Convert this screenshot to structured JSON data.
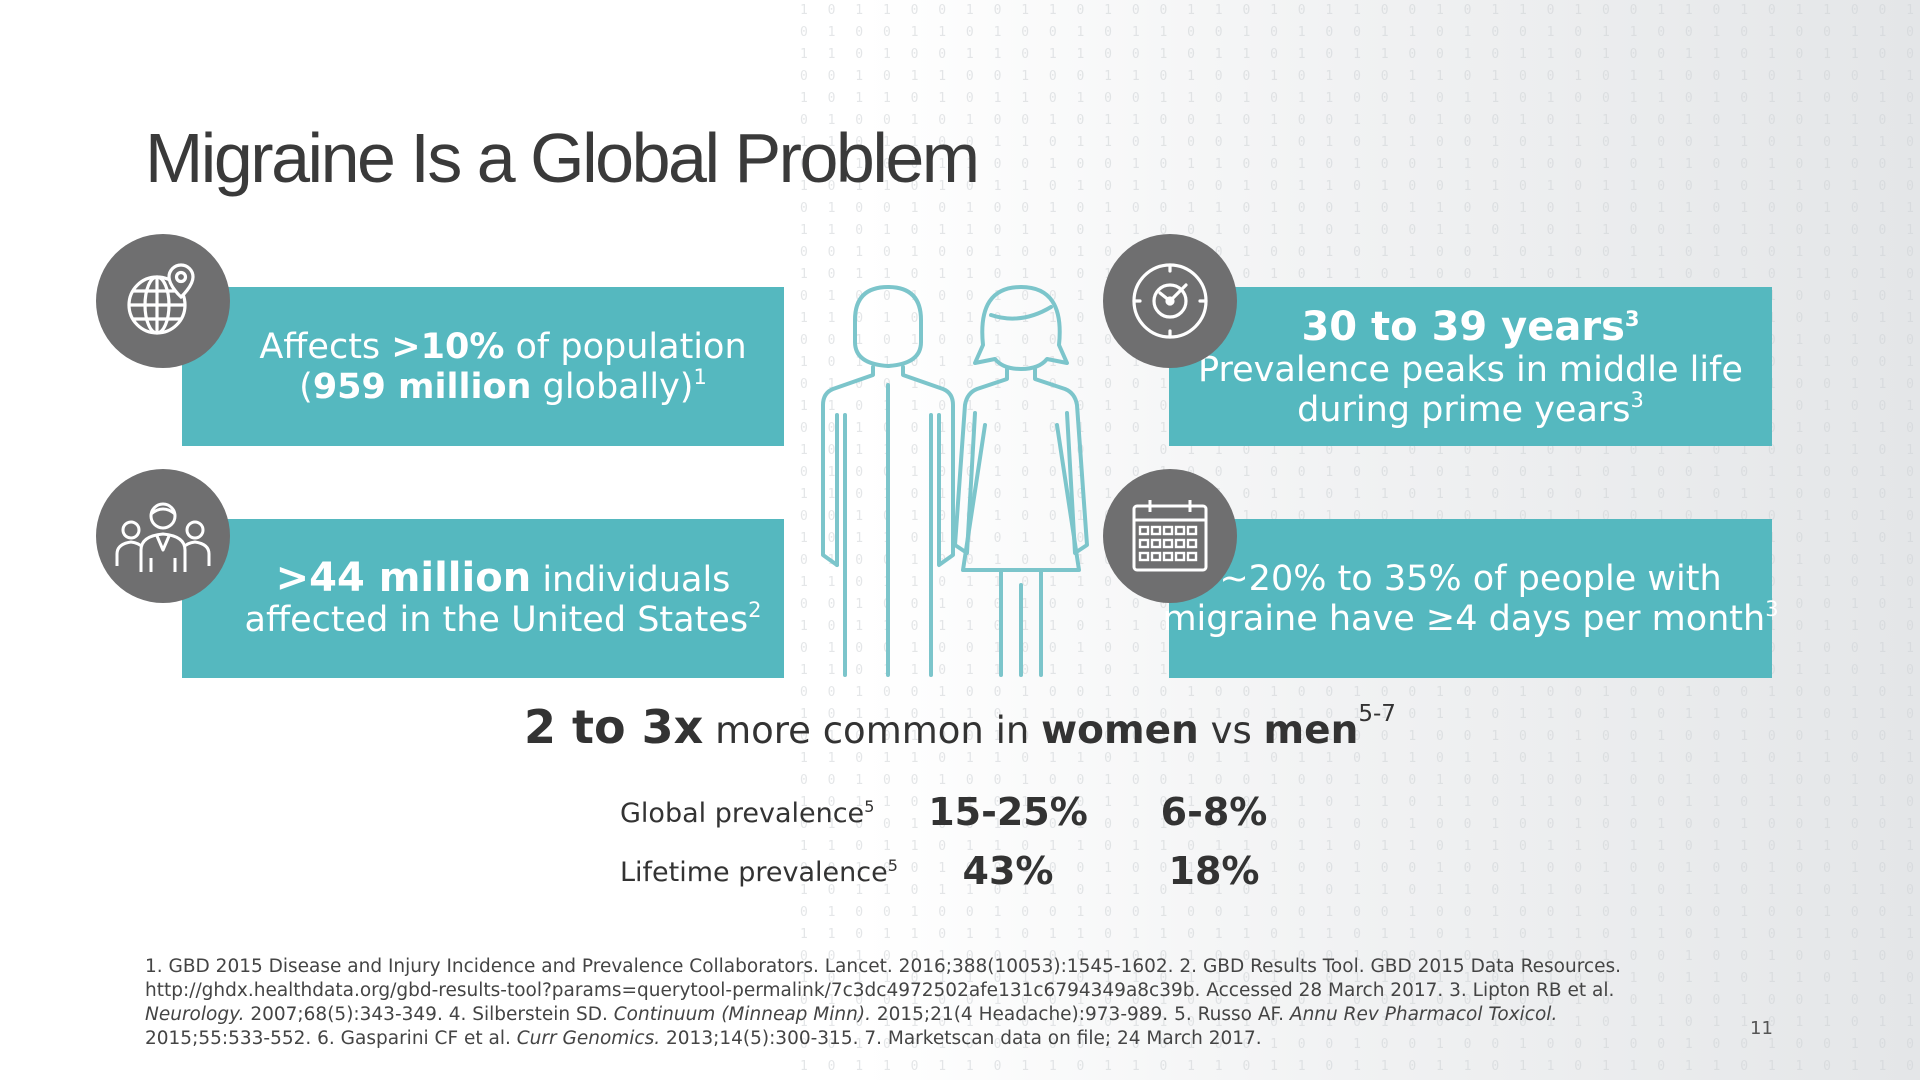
{
  "slide": {
    "title": "Migraine Is a Global Problem",
    "page_number": "11"
  },
  "stats": {
    "global": {
      "line1_pre": "Affects ",
      "line1_bold": ">10%",
      "line1_post": " of population",
      "line2_pre": "(",
      "line2_bold": "959 million",
      "line2_post": " globally)",
      "sup": "1",
      "icon": "globe-pin-icon"
    },
    "us": {
      "line1_bold": ">44 million",
      "line1_post": " individuals",
      "line2": "affected in the United States",
      "sup": "2",
      "icon": "people-group-icon"
    },
    "age": {
      "headline": "30 to 39 years",
      "headline_sup": "3",
      "line1": "Prevalence peaks in middle life",
      "line2": "during prime years",
      "sup": "3",
      "icon": "clock-icon"
    },
    "days": {
      "line1": "~20% to 35% of people with",
      "line2": "migraine have ≥4 days per month",
      "sup": "3",
      "icon": "calendar-icon"
    }
  },
  "comparison": {
    "bold1": "2 to 3x",
    "text1": " more common in ",
    "bold2": "women",
    "text2": " vs ",
    "bold3": "men",
    "sup": "5-7"
  },
  "prevalence": [
    {
      "label": "Global prevalence",
      "sup": "5",
      "women": "15-25%",
      "men": "6-8%"
    },
    {
      "label": "Lifetime prevalence",
      "sup": "5",
      "women": "43%",
      "men": "18%"
    }
  ],
  "references": {
    "part1": "1. GBD 2015 Disease and Injury Incidence and Prevalence Collaborators. Lancet. 2016;388(10053):1545-1602. 2. GBD Results Tool. GBD 2015 Data Resources. http://ghdx.healthdata.org/gbd-results-tool?params=querytool-permalink/7c3dc4972502afe131c6794349a8c39b. Accessed 28 March 2017. 3. Lipton RB et al. ",
    "journal1": "Neurology.",
    "part2": " 2007;68(5):343-349. 4. Silberstein SD. ",
    "journal2": "Continuum (Minneap Minn).",
    "part3": " 2015;21(4 Headache):973-989. 5. Russo AF. ",
    "journal3": "Annu Rev Pharmacol Toxicol.",
    "part4": " 2015;55:533-552. 6. Gasparini CF et al. ",
    "journal4": "Curr Genomics.",
    "part5": " 2013;14(5):300-315. 7. Marketscan data on file; 24 March 2017."
  },
  "colors": {
    "teal": "#55b8bf",
    "icon_gray": "#6f6f70",
    "figure_stroke": "#7cc5cb",
    "text_dark": "#333333"
  }
}
